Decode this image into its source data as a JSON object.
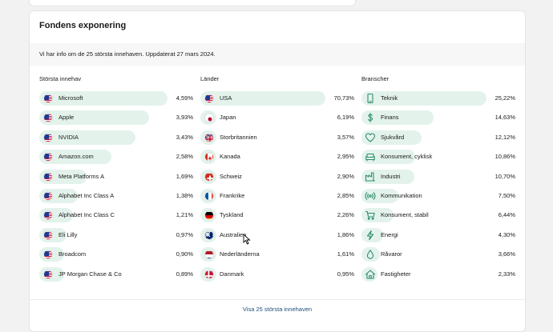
{
  "card": {
    "title": "Fondens exponering",
    "info": "Vi har info om de 25 största innehaven. Uppdaterat 27 mars 2024.",
    "footer_link": "Visa 25 största innehaven"
  },
  "holdings": {
    "title": "Största innehav",
    "rows": [
      {
        "label": "Microsoft",
        "value": "4,59%",
        "pct": 4.59
      },
      {
        "label": "Apple",
        "value": "3,93%",
        "pct": 3.93
      },
      {
        "label": "NVIDIA",
        "value": "3,43%",
        "pct": 3.43
      },
      {
        "label": "Amazon.com",
        "value": "2,58%",
        "pct": 2.58
      },
      {
        "label": "Meta Platforms A",
        "value": "1,69%",
        "pct": 1.69
      },
      {
        "label": "Alphabet Inc Class A",
        "value": "1,38%",
        "pct": 1.38
      },
      {
        "label": "Alphabet Inc Class C",
        "value": "1,21%",
        "pct": 1.21
      },
      {
        "label": "Eli Lilly",
        "value": "0,97%",
        "pct": 0.97
      },
      {
        "label": "Broadcom",
        "value": "0,90%",
        "pct": 0.9
      },
      {
        "label": "JP Morgan Chase & Co",
        "value": "0,89%",
        "pct": 0.89
      }
    ]
  },
  "countries": {
    "title": "Länder",
    "rows": [
      {
        "label": "USA",
        "value": "70,73%",
        "pct": 70.73,
        "flag": "us"
      },
      {
        "label": "Japan",
        "value": "6,19%",
        "pct": 6.19,
        "flag": "jp"
      },
      {
        "label": "Storbritannien",
        "value": "3,57%",
        "pct": 3.57,
        "flag": "gb"
      },
      {
        "label": "Kanada",
        "value": "2,95%",
        "pct": 2.95,
        "flag": "ca"
      },
      {
        "label": "Schweiz",
        "value": "2,90%",
        "pct": 2.9,
        "flag": "ch"
      },
      {
        "label": "Frankrike",
        "value": "2,85%",
        "pct": 2.85,
        "flag": "fr"
      },
      {
        "label": "Tyskland",
        "value": "2,26%",
        "pct": 2.26,
        "flag": "de"
      },
      {
        "label": "Australien",
        "value": "1,86%",
        "pct": 1.86,
        "flag": "au"
      },
      {
        "label": "Nederländerna",
        "value": "1,61%",
        "pct": 1.61,
        "flag": "nl"
      },
      {
        "label": "Danmark",
        "value": "0,95%",
        "pct": 0.95,
        "flag": "dk"
      }
    ]
  },
  "sectors": {
    "title": "Branscher",
    "rows": [
      {
        "label": "Teknik",
        "value": "25,22%",
        "pct": 25.22,
        "icon": "phone-icon"
      },
      {
        "label": "Finans",
        "value": "14,63%",
        "pct": 14.63,
        "icon": "dollar-icon"
      },
      {
        "label": "Sjukvård",
        "value": "12,12%",
        "pct": 12.12,
        "icon": "heart-icon"
      },
      {
        "label": "Konsument, cyklisk",
        "value": "10,86%",
        "pct": 10.86,
        "icon": "sofa-icon"
      },
      {
        "label": "Industri",
        "value": "10,70%",
        "pct": 10.7,
        "icon": "factory-icon"
      },
      {
        "label": "Kommunikation",
        "value": "7,50%",
        "pct": 7.5,
        "icon": "broadcast-icon"
      },
      {
        "label": "Konsument, stabil",
        "value": "6,44%",
        "pct": 6.44,
        "icon": "cart-icon"
      },
      {
        "label": "Energi",
        "value": "4,30%",
        "pct": 4.3,
        "icon": "lightning-icon"
      },
      {
        "label": "Råvaror",
        "value": "3,66%",
        "pct": 3.66,
        "icon": "drop-icon"
      },
      {
        "label": "Fastigheter",
        "value": "2,33%",
        "pct": 2.33,
        "icon": "house-icon"
      }
    ]
  },
  "colors": {
    "bar": "#e3f3ec",
    "icon": "#2e8b6e",
    "link": "#1f4f7a"
  }
}
